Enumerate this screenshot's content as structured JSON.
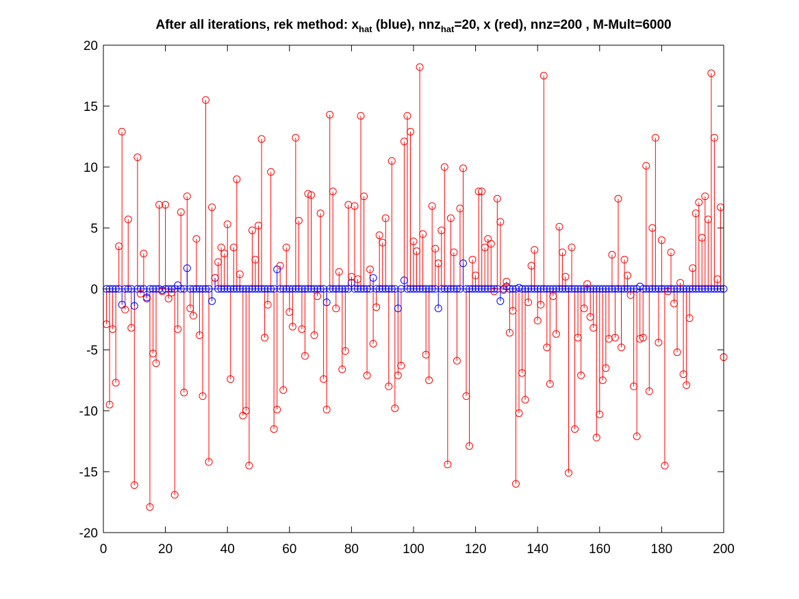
{
  "chart_data": {
    "type": "stem",
    "title": {
      "part1": "After all iterations, rek method: x",
      "sub1": "hat",
      "part2": " (blue), nnz",
      "sub2": "hat",
      "part3": "=20, x (red), nnz=200 , M-Mult=6000"
    },
    "xlabel": "",
    "ylabel": "",
    "xlim": [
      0,
      200
    ],
    "ylim": [
      -20,
      20
    ],
    "xticks": [
      0,
      20,
      40,
      60,
      80,
      100,
      120,
      140,
      160,
      180,
      200
    ],
    "yticks": [
      -20,
      -15,
      -10,
      -5,
      0,
      5,
      10,
      15,
      20
    ],
    "grid": false,
    "colors": {
      "x": "#ff0000",
      "x_hat": "#0000ff",
      "axes": "#000000"
    },
    "series": [
      {
        "label": "x",
        "color": "#ff0000",
        "values": [
          -2.9,
          -9.5,
          -3.3,
          -7.7,
          3.5,
          12.9,
          -1.7,
          5.7,
          -3.2,
          -16.1,
          10.8,
          -0.4,
          2.9,
          -0.8,
          -17.9,
          -5.3,
          -6.1,
          6.9,
          -0.2,
          6.9,
          -0.8,
          -0.3,
          -16.9,
          -3.3,
          6.3,
          -8.5,
          7.6,
          -1.6,
          -2.2,
          4.1,
          -3.8,
          -8.8,
          15.5,
          -14.2,
          6.7,
          0.9,
          2.2,
          3.4,
          2.9,
          5.3,
          -7.4,
          3.4,
          9.0,
          1.2,
          -10.4,
          -10.0,
          -14.5,
          4.8,
          2.4,
          5.2,
          12.3,
          -4.0,
          -1.3,
          9.6,
          -11.5,
          -9.9,
          1.9,
          -8.3,
          3.4,
          -1.9,
          -3.1,
          12.4,
          5.6,
          -3.3,
          -5.5,
          7.8,
          7.7,
          -3.8,
          -0.6,
          6.2,
          -7.4,
          -9.9,
          14.3,
          8.0,
          -1.6,
          1.4,
          -6.6,
          -5.1,
          6.9,
          1.0,
          6.8,
          0.8,
          14.2,
          7.6,
          -7.1,
          1.6,
          -4.5,
          -1.5,
          4.4,
          3.8,
          5.8,
          -8.0,
          10.5,
          -9.8,
          -7.1,
          -6.3,
          12.1,
          14.2,
          12.9,
          3.9,
          3.1,
          18.2,
          4.5,
          -5.4,
          -7.5,
          6.8,
          3.3,
          2.1,
          4.8,
          10.0,
          -14.4,
          5.8,
          3.0,
          -5.9,
          6.6,
          9.9,
          -8.8,
          -12.9,
          2.4,
          1.1,
          8.0,
          8.0,
          3.4,
          4.1,
          3.7,
          -0.2,
          7.4,
          5.5,
          -0.1,
          0.6,
          -3.6,
          -1.8,
          -16.0,
          -10.2,
          -6.9,
          -9.1,
          -1.1,
          1.9,
          3.2,
          -2.6,
          -1.3,
          17.5,
          -4.8,
          -7.8,
          -0.6,
          -3.7,
          5.1,
          3.0,
          1.0,
          -15.1,
          3.4,
          -11.5,
          -4.0,
          -7.1,
          -1.6,
          0.4,
          -2.3,
          -3.2,
          -12.2,
          -10.3,
          -7.5,
          -6.5,
          -4.1,
          2.8,
          -4.0,
          7.4,
          -4.8,
          2.4,
          1.1,
          -0.5,
          -8.0,
          -12.1,
          -4.1,
          -4.0,
          10.1,
          -8.4,
          5.0,
          12.4,
          -4.4,
          4.0,
          -14.5,
          -0.2,
          3.0,
          -1.2,
          -5.2,
          0.5,
          -7.0,
          -7.9,
          -2.4,
          1.7,
          6.2,
          7.1,
          4.2,
          7.6,
          5.7,
          17.7,
          12.4,
          0.8,
          6.7,
          -5.6
        ]
      },
      {
        "label": "x_hat",
        "color": "#0000ff",
        "nonzero": [
          {
            "x": 6,
            "y": -1.3
          },
          {
            "x": 10,
            "y": -1.4
          },
          {
            "x": 14,
            "y": -0.7
          },
          {
            "x": 19,
            "y": -0.1
          },
          {
            "x": 24,
            "y": 0.3
          },
          {
            "x": 27,
            "y": 1.7
          },
          {
            "x": 35,
            "y": -1.0
          },
          {
            "x": 36,
            "y": 0.9
          },
          {
            "x": 56,
            "y": 1.6
          },
          {
            "x": 72,
            "y": -1.1
          },
          {
            "x": 80,
            "y": 0.5
          },
          {
            "x": 87,
            "y": 0.9
          },
          {
            "x": 95,
            "y": -1.6
          },
          {
            "x": 97,
            "y": 0.7
          },
          {
            "x": 108,
            "y": -1.6
          },
          {
            "x": 116,
            "y": 2.1
          },
          {
            "x": 128,
            "y": -1.0
          },
          {
            "x": 130,
            "y": 0.2
          },
          {
            "x": 134,
            "y": 0.1
          },
          {
            "x": 173,
            "y": 0.2
          }
        ]
      }
    ]
  }
}
